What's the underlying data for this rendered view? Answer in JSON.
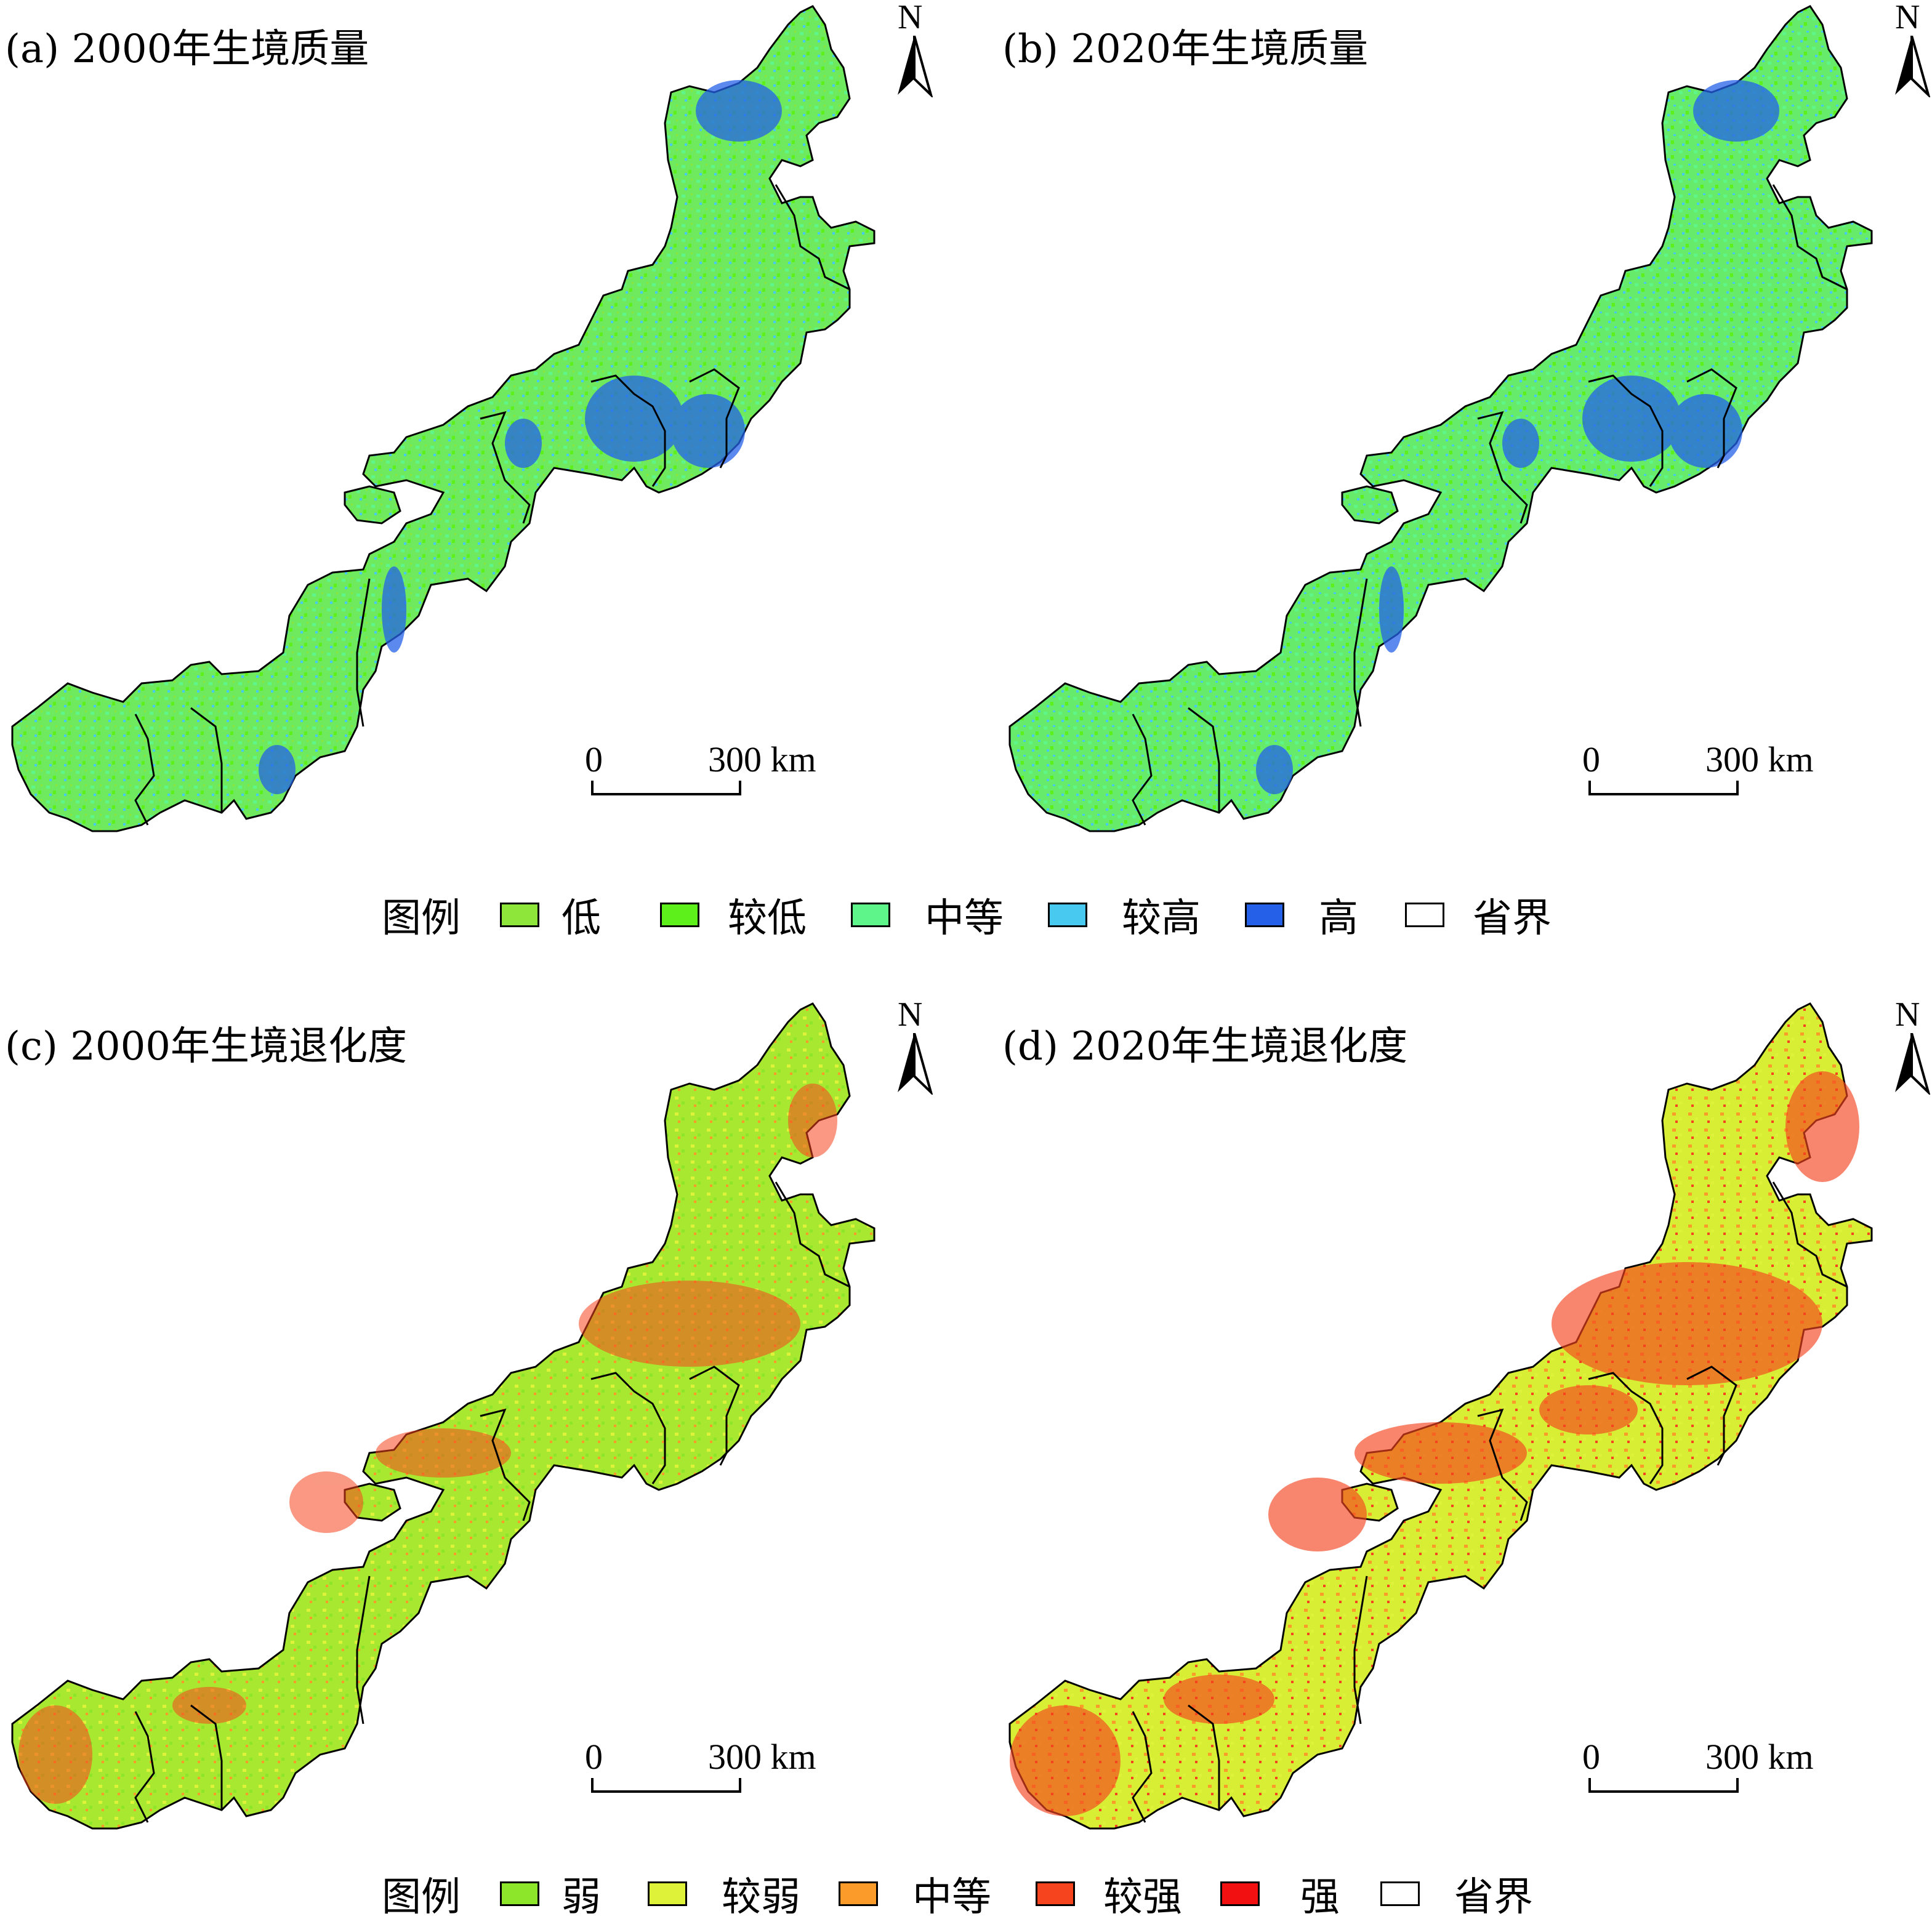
{
  "panels": [
    {
      "id": "a",
      "title": "(a) 2000年生境质量",
      "type": "quality"
    },
    {
      "id": "b",
      "title": "(b) 2020年生境质量",
      "type": "quality"
    },
    {
      "id": "c",
      "title": "(c) 2000年生境退化度",
      "type": "degradation"
    },
    {
      "id": "d",
      "title": "(d) 2020年生境退化度",
      "type": "degradation"
    }
  ],
  "north_label": "N",
  "scale": {
    "start": "0",
    "end": "300 km"
  },
  "legend_quality": {
    "title": "图例",
    "items": [
      {
        "label": "低",
        "color": "#8ee63a"
      },
      {
        "label": "较低",
        "color": "#5ef01a"
      },
      {
        "label": "中等",
        "color": "#5ef58a"
      },
      {
        "label": "较高",
        "color": "#47c9f0"
      },
      {
        "label": "高",
        "color": "#2461e8"
      },
      {
        "label": "省界",
        "color": "#ffffff"
      }
    ]
  },
  "legend_degradation": {
    "title": "图例",
    "items": [
      {
        "label": "弱",
        "color": "#8ee62a"
      },
      {
        "label": "较弱",
        "color": "#dff23a"
      },
      {
        "label": "中等",
        "color": "#fb9b2a"
      },
      {
        "label": "较强",
        "color": "#f5441e"
      },
      {
        "label": "强",
        "color": "#f21010"
      },
      {
        "label": "省界",
        "color": "#ffffff"
      }
    ]
  }
}
